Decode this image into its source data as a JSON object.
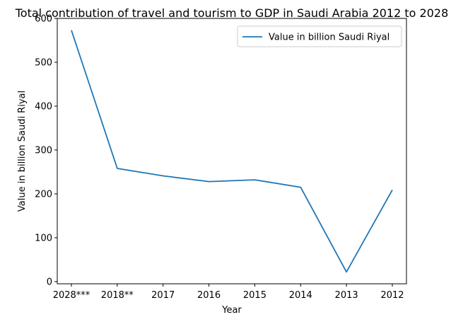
{
  "chart_data": {
    "type": "line",
    "title": "Total contribution of travel and tourism to GDP in Saudi Arabia 2012 to 2028",
    "xlabel": "Year",
    "ylabel": "Value in billion Saudi Riyal",
    "categories": [
      "2028***",
      "2018**",
      "2017",
      "2016",
      "2015",
      "2014",
      "2013",
      "2012"
    ],
    "series": [
      {
        "name": "Value in billion Saudi Riyal",
        "values": [
          573,
          258,
          241,
          228,
          232,
          215,
          22,
          209
        ],
        "color": "#1f77b4"
      }
    ],
    "ylim": [
      -5,
      600
    ],
    "yticks": [
      0,
      100,
      200,
      300,
      400,
      500,
      600
    ],
    "grid": false,
    "legend_position": "top-right"
  }
}
